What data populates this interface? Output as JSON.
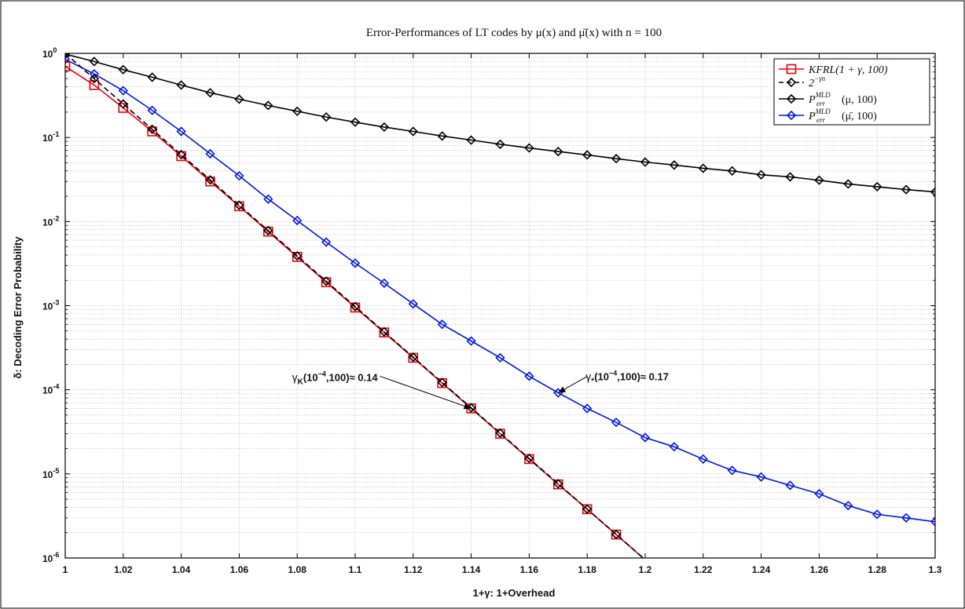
{
  "chart_data": {
    "type": "line",
    "title": "Error-Performances of LT codes by μ(x) and μ̄(x) with n = 100",
    "xlabel": "1+γ: 1+Overhead",
    "ylabel": "δ: Decoding Error Probability",
    "xlim": [
      1.0,
      1.3
    ],
    "ylim": [
      1e-06,
      1.0
    ],
    "yscale": "log",
    "grid": true,
    "legend_position": "top-right",
    "x_ticks": [
      "1",
      "1.02",
      "1.04",
      "1.06",
      "1.08",
      "1.1",
      "1.12",
      "1.14",
      "1.16",
      "1.18",
      "1.2",
      "1.22",
      "1.24",
      "1.26",
      "1.28",
      "1.3"
    ],
    "y_tick_mantissa": [
      "10",
      "10",
      "10",
      "10",
      "10",
      "10",
      "10"
    ],
    "y_tick_exponent": [
      "0",
      "-1",
      "-2",
      "-3",
      "-4",
      "-5",
      "-6"
    ],
    "legend": [
      {
        "base": "KFRL(1 + γ, 100)",
        "sup": "",
        "sub": "",
        "tail": ""
      },
      {
        "base": "2",
        "sup": "−γn",
        "sub": "",
        "tail": ""
      },
      {
        "base": "P",
        "sup": "MLD",
        "sub": "err",
        "tail": "(μ, 100)"
      },
      {
        "base": "P",
        "sup": "MLD",
        "sub": "err",
        "tail": "(μ̄, 100)"
      }
    ],
    "series": [
      {
        "key": "kfrl",
        "color": "#e8000b",
        "marker": "square",
        "dash": "solid",
        "x": [
          1.0,
          1.01,
          1.02,
          1.03,
          1.04,
          1.05,
          1.06,
          1.07,
          1.08,
          1.09,
          1.1,
          1.11,
          1.12,
          1.13,
          1.14,
          1.15,
          1.16,
          1.17,
          1.18,
          1.19,
          1.2
        ],
        "y": [
          0.7,
          0.42,
          0.225,
          0.118,
          0.06,
          0.03,
          0.0152,
          0.0076,
          0.0038,
          0.0019,
          0.00095,
          0.00048,
          0.00024,
          0.00012,
          6e-05,
          3e-05,
          1.5e-05,
          7.5e-06,
          3.8e-06,
          1.9e-06,
          9.5e-07
        ]
      },
      {
        "key": "bound",
        "color": "#000000",
        "marker": "diamond",
        "dash": "dashed",
        "x": [
          1.0,
          1.01,
          1.02,
          1.03,
          1.04,
          1.05,
          1.06,
          1.07,
          1.08,
          1.09,
          1.1,
          1.11,
          1.12,
          1.13,
          1.14,
          1.15,
          1.16,
          1.17,
          1.18,
          1.19,
          1.2
        ],
        "y": [
          1.0,
          0.5,
          0.25,
          0.125,
          0.0625,
          0.03125,
          0.015625,
          0.0078125,
          0.00390625,
          0.001953125,
          0.0009765625,
          0.00048828125,
          0.000244140625,
          0.0001220703125,
          6.103515625e-05,
          3.0517578125e-05,
          1.52587890625e-05,
          7.62939453125e-06,
          3.814697265625e-06,
          1.9073486328125e-06,
          9.5367431640625e-07
        ]
      },
      {
        "key": "mld_mu",
        "color": "#000000",
        "marker": "diamond",
        "dash": "solid",
        "x": [
          1.0,
          1.01,
          1.02,
          1.03,
          1.04,
          1.05,
          1.06,
          1.07,
          1.08,
          1.09,
          1.1,
          1.11,
          1.12,
          1.13,
          1.14,
          1.15,
          1.16,
          1.17,
          1.18,
          1.19,
          1.2,
          1.21,
          1.22,
          1.23,
          1.24,
          1.25,
          1.26,
          1.27,
          1.28,
          1.29,
          1.3
        ],
        "y": [
          0.98,
          0.8,
          0.64,
          0.52,
          0.42,
          0.34,
          0.285,
          0.24,
          0.205,
          0.175,
          0.152,
          0.133,
          0.118,
          0.104,
          0.093,
          0.083,
          0.075,
          0.068,
          0.062,
          0.056,
          0.051,
          0.047,
          0.043,
          0.04,
          0.036,
          0.034,
          0.031,
          0.028,
          0.026,
          0.024,
          0.0225
        ]
      },
      {
        "key": "mld_mubar",
        "color": "#0018e0",
        "marker": "diamond",
        "dash": "solid",
        "x": [
          1.0,
          1.01,
          1.02,
          1.03,
          1.04,
          1.05,
          1.06,
          1.07,
          1.08,
          1.09,
          1.1,
          1.11,
          1.12,
          1.13,
          1.14,
          1.15,
          1.16,
          1.17,
          1.18,
          1.19,
          1.2,
          1.21,
          1.22,
          1.23,
          1.24,
          1.25,
          1.26,
          1.27,
          1.28,
          1.29,
          1.3
        ],
        "y": [
          0.85,
          0.57,
          0.36,
          0.21,
          0.118,
          0.064,
          0.035,
          0.0185,
          0.0103,
          0.0057,
          0.0032,
          0.00185,
          0.00105,
          0.0006,
          0.00038,
          0.00024,
          0.000145,
          9.2e-05,
          6e-05,
          4.1e-05,
          2.7e-05,
          2.1e-05,
          1.5e-05,
          1.1e-05,
          9.2e-06,
          7.3e-06,
          5.8e-06,
          4.2e-06,
          3.3e-06,
          3e-06,
          2.7e-06
        ]
      }
    ],
    "annotations": [
      {
        "prefix": "γ",
        "sub": "K",
        "mid": "(10",
        "sup": "−4",
        "suffix": ",100)≈ 0.14",
        "x": 1.14,
        "y": 6e-05,
        "anchor": "left-above"
      },
      {
        "prefix": "γ",
        "sub": "*",
        "mid": "(10",
        "sup": "−4",
        "suffix": ",100)≈ 0.17",
        "x": 1.17,
        "y": 9.2e-05,
        "anchor": "right-above"
      }
    ]
  }
}
